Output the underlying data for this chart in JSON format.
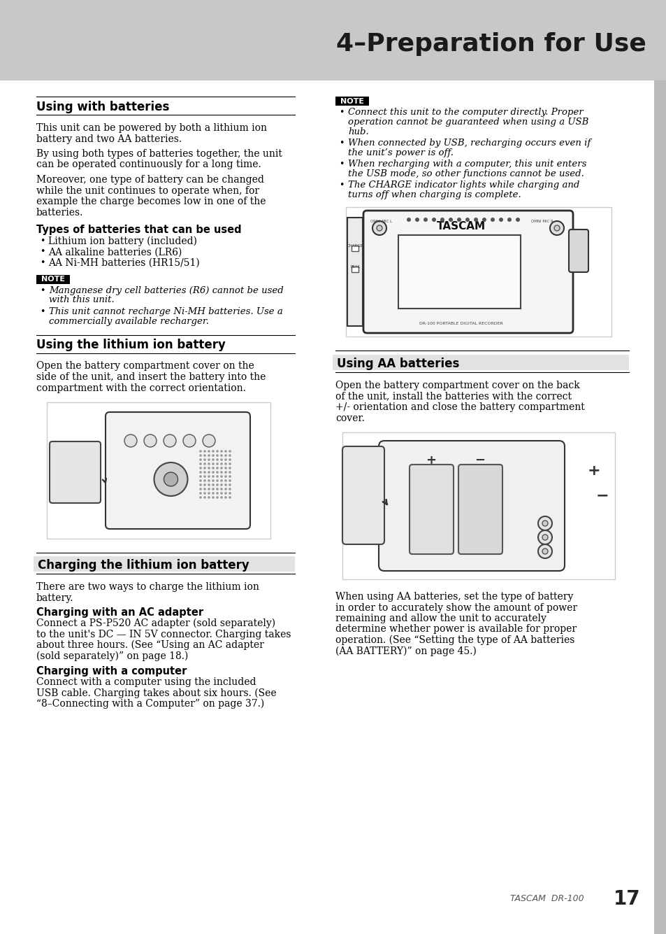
{
  "title": "4–Preparation for Use",
  "page_bg": "#ffffff",
  "header_bg": "#c8c8c8",
  "title_fontsize": 26,
  "section1_heading": "Using with batteries",
  "section1_body1": "This unit can be powered by both a lithium ion\nbattery and two AA batteries.",
  "section1_body2": "By using both types of batteries together, the unit\ncan be operated continuously for a long time.",
  "section1_body3": "Moreover, one type of battery can be changed\nwhile the unit continues to operate when, for\nexample the charge becomes low in one of the\nbatteries.",
  "section1_subheading": "Types of batteries that can be used",
  "section1_bullets": [
    "Lithium ion battery (included)",
    "AA alkaline batteries (LR6)",
    "AA Ni-MH batteries (HR15/51)"
  ],
  "note1_items": [
    "Manganese dry cell batteries (R6) cannot be used\nwith this unit.",
    "This unit cannot recharge Ni-MH batteries. Use a\ncommercially available recharger."
  ],
  "section2_heading": "Using the lithium ion battery",
  "section2_body": "Open the battery compartment cover on the\nside of the unit, and insert the battery into the\ncompartment with the correct orientation.",
  "note2_items": [
    "Connect this unit to the computer directly. Proper\noperation cannot be guaranteed when using a USB\nhub.",
    "When connected by USB, recharging occurs even if\nthe unit’s power is off.",
    "When recharging with a computer, this unit enters\nthe USB mode, so other functions cannot be used.",
    "The CHARGE indicator lights while charging and\nturns off when charging is complete."
  ],
  "section3_heading": "Using AA batteries",
  "section3_body": "Open the battery compartment cover on the back\nof the unit, install the batteries with the correct\n+/- orientation and close the battery compartment\ncover.",
  "section4_heading": "Charging the lithium ion battery",
  "section4_body": "There are two ways to charge the lithium ion\nbattery.",
  "section4_sub1": "Charging with an AC adapter",
  "section4_sub1_body": "Connect a PS-P520 AC adapter (sold separately)\nto the unit's DC — IN 5V connector. Charging takes\nabout three hours. (See “Using an AC adapter\n(sold separately)” on page 18.)",
  "section4_sub2": "Charging with a computer",
  "section4_sub2_body": "Connect with a computer using the included\nUSB cable. Charging takes about six hours. (See\n“8–Connecting with a Computer” on page 37.)",
  "section3_extra": "When using AA batteries, set the type of battery\nin order to accurately show the amount of power\nremaining and allow the unit to accurately\ndetermine whether power is available for proper\noperation. (See “Setting the type of AA batteries\n(AA BATTERY)” on page 45.)",
  "footer_text": "TASCAM  DR-100",
  "footer_page": "17",
  "note_bg": "#000000",
  "note_text_color": "#ffffff",
  "note_label": "NOTE"
}
